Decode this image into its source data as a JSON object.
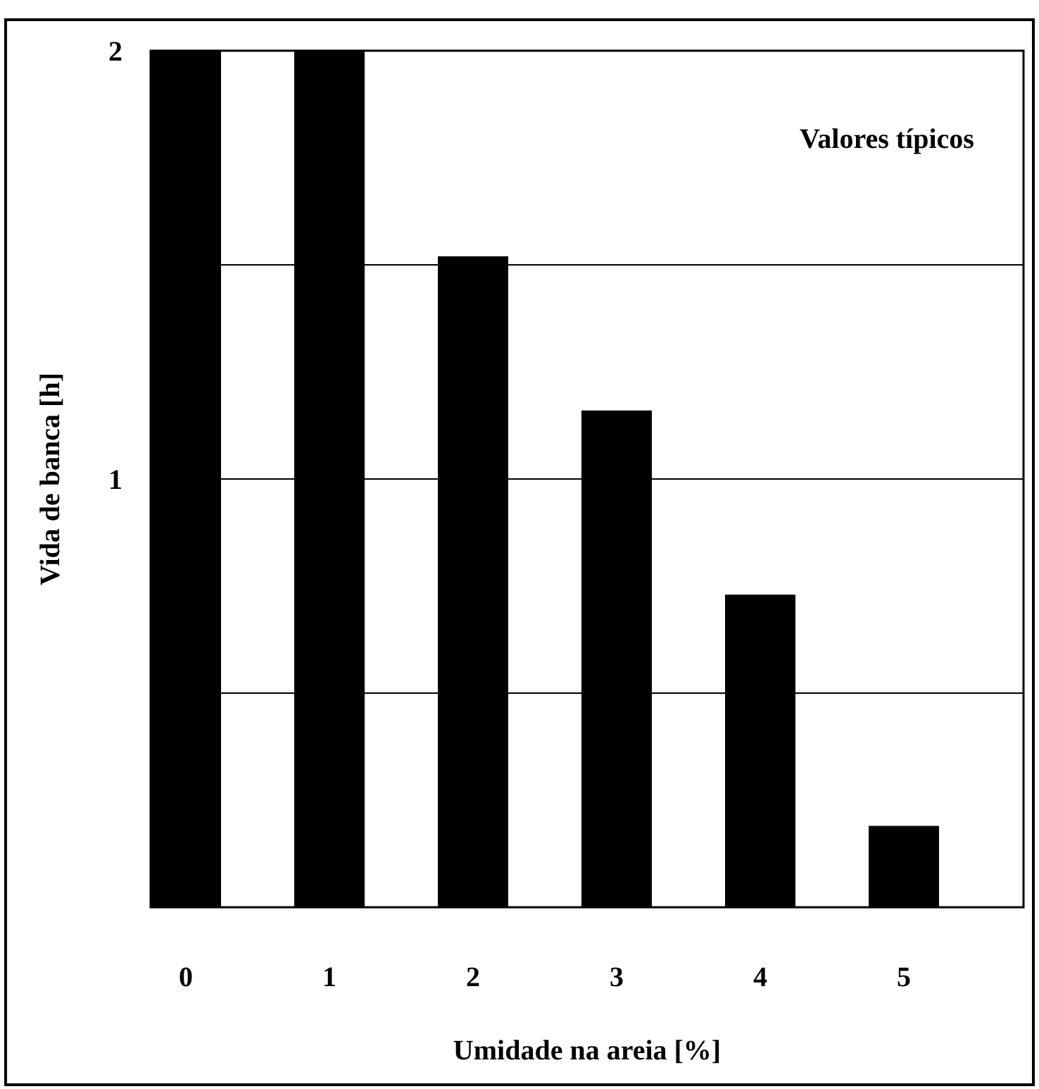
{
  "chart_data": {
    "type": "bar",
    "xlabel": "Umidade na areia [%]",
    "ylabel": "Vida de banca [h]",
    "categories": [
      "0",
      "1",
      "2",
      "3",
      "4",
      "5"
    ],
    "values": [
      2,
      2,
      1.52,
      1.16,
      0.73,
      0.19
    ],
    "color": "#000000",
    "ylim": [
      0,
      2
    ],
    "yticks": [
      {
        "value": 0.5,
        "label": null
      },
      1,
      {
        "value": 1.5,
        "label": null
      },
      2
    ],
    "grid": "y",
    "annotations": [
      "Valores típicos"
    ]
  }
}
